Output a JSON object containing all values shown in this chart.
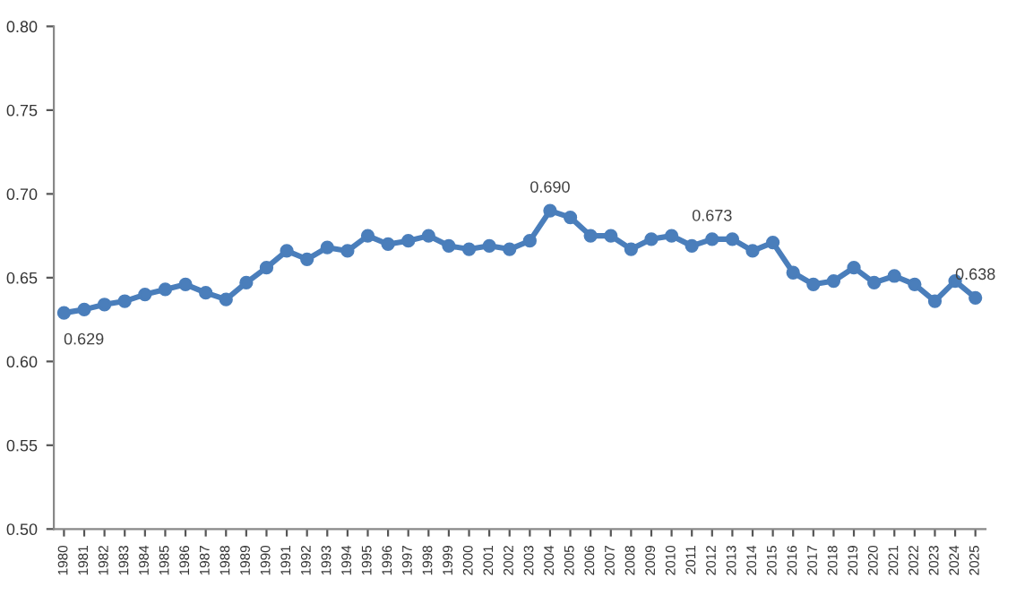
{
  "chart_data": {
    "type": "line",
    "categories": [
      "1980",
      "1981",
      "1982",
      "1983",
      "1984",
      "1985",
      "1986",
      "1987",
      "1988",
      "1989",
      "1990",
      "1991",
      "1992",
      "1993",
      "1994",
      "1995",
      "1996",
      "1997",
      "1998",
      "1999",
      "2000",
      "2001",
      "2002",
      "2003",
      "2004",
      "2005",
      "2006",
      "2007",
      "2008",
      "2009",
      "2010",
      "2011",
      "2012",
      "2013",
      "2014",
      "2015",
      "2016",
      "2017",
      "2018",
      "2019",
      "2020",
      "2021",
      "2022",
      "2023",
      "2024",
      "2025"
    ],
    "series": [
      {
        "color": "#4a7ebb",
        "values": [
          0.629,
          0.631,
          0.634,
          0.636,
          0.64,
          0.643,
          0.646,
          0.641,
          0.637,
          0.647,
          0.656,
          0.666,
          0.661,
          0.668,
          0.666,
          0.675,
          0.67,
          0.672,
          0.675,
          0.669,
          0.667,
          0.669,
          0.667,
          0.672,
          0.69,
          0.686,
          0.675,
          0.675,
          0.667,
          0.673,
          0.675,
          0.669,
          0.673,
          0.673,
          0.666,
          0.671,
          0.653,
          0.646,
          0.648,
          0.656,
          0.647,
          0.651,
          0.646,
          0.636,
          0.648,
          0.638
        ],
        "value_labels": [
          "0.629",
          null,
          null,
          null,
          null,
          null,
          null,
          null,
          null,
          null,
          null,
          null,
          null,
          null,
          null,
          null,
          null,
          null,
          null,
          null,
          null,
          null,
          null,
          null,
          "0.690",
          null,
          null,
          null,
          null,
          null,
          null,
          null,
          "0.673",
          null,
          null,
          null,
          null,
          null,
          null,
          null,
          null,
          null,
          null,
          null,
          null,
          "0.638"
        ]
      }
    ],
    "ylim": [
      0.5,
      0.8
    ],
    "yticks": [
      {
        "value": 0.5,
        "label": "0.50"
      },
      {
        "value": 0.55,
        "label": "0.55"
      },
      {
        "value": 0.6,
        "label": "0.60"
      },
      {
        "value": 0.65,
        "label": "0.65"
      },
      {
        "value": 0.7,
        "label": "0.70"
      },
      {
        "value": 0.75,
        "label": "0.75"
      },
      {
        "value": 0.8,
        "label": "0.80"
      }
    ],
    "marker": "circle",
    "line_style": "solid",
    "grid": false,
    "legend": false
  }
}
